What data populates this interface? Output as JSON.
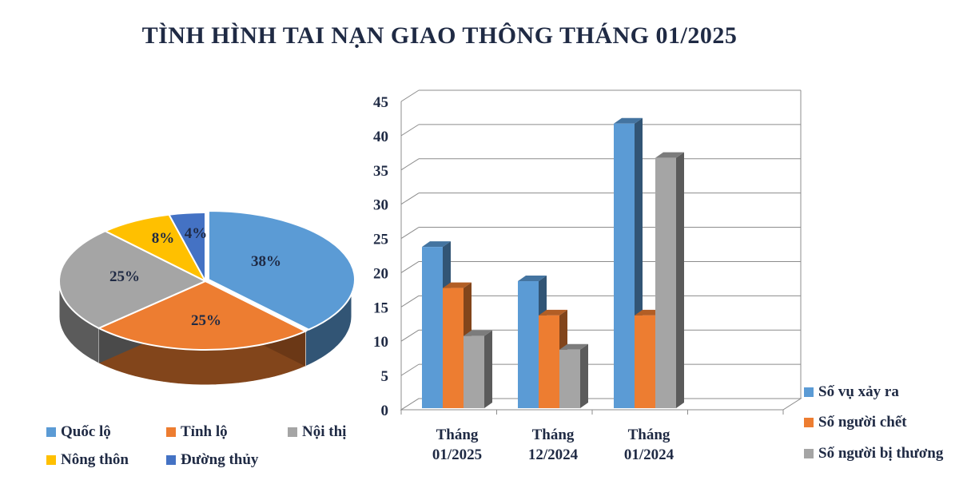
{
  "title": "TÌNH HÌNH TAI NẠN GIAO THÔNG THÁNG 01/2025",
  "chart_data": [
    {
      "type": "pie",
      "style": "3d",
      "categories": [
        "Quốc lộ",
        "Tỉnh lộ",
        "Nội thị",
        "Nông thôn",
        "Đường thủy"
      ],
      "values": [
        38,
        25,
        25,
        8,
        4
      ],
      "labels": [
        "38%",
        "25%",
        "25%",
        "8%",
        "4%"
      ],
      "colors": [
        "#5b9bd5",
        "#ed7d31",
        "#a5a5a5",
        "#ffc000",
        "#4472c4"
      ],
      "legend_position": "bottom"
    },
    {
      "type": "bar",
      "style": "3d",
      "categories": [
        "Tháng 01/2025",
        "Tháng 12/2024",
        "Tháng 01/2024"
      ],
      "category_lines": [
        [
          "Tháng",
          "01/2025"
        ],
        [
          "Tháng",
          "12/2024"
        ],
        [
          "Tháng",
          "01/2024"
        ]
      ],
      "series": [
        {
          "name": "Số vụ xảy ra",
          "values": [
            24,
            19,
            42
          ],
          "color": "#5b9bd5"
        },
        {
          "name": "Số người chết",
          "values": [
            18,
            14,
            14
          ],
          "color": "#ed7d31"
        },
        {
          "name": "Số người bị thương",
          "values": [
            11,
            9,
            37
          ],
          "color": "#a5a5a5"
        }
      ],
      "ylim": [
        0,
        45
      ],
      "yticks": [
        "0",
        "5",
        "10",
        "15",
        "20",
        "25",
        "30",
        "35",
        "40",
        "45"
      ],
      "grid": true,
      "legend_position": "right"
    }
  ]
}
